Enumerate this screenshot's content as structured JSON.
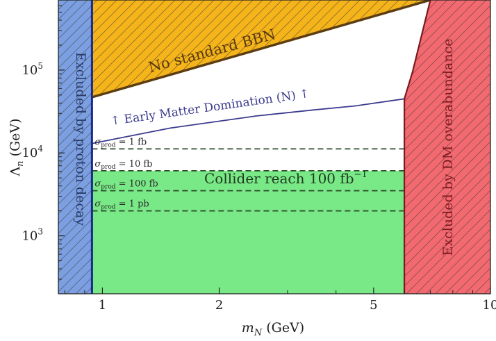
{
  "chart_data": {
    "type": "area",
    "xlabel": "m_N (GeV)",
    "ylabel": "Λ_n (GeV)",
    "x_scale": "log",
    "y_scale": "log",
    "xlim": [
      0.77,
      10
    ],
    "ylim": [
      200,
      700000
    ],
    "x_ticks": [
      {
        "value": 1,
        "label": "1"
      },
      {
        "value": 2,
        "label": "2"
      },
      {
        "value": 5,
        "label": "5"
      },
      {
        "value": 10,
        "label": "10"
      }
    ],
    "y_ticks": [
      {
        "value": 1000,
        "base": "10",
        "exp": "3"
      },
      {
        "value": 10000,
        "base": "10",
        "exp": "4"
      },
      {
        "value": 100000,
        "base": "10",
        "exp": "5"
      }
    ],
    "regions": {
      "proton_decay": {
        "label": "Excluded by proton decay",
        "x_max": 0.94,
        "color": "#7b9fe0"
      },
      "dm_overabundance": {
        "label": "Excluded by DM overabundance",
        "boundary": [
          [
            6.0,
            45000
          ],
          [
            6.3,
            95000
          ],
          [
            7.0,
            700000
          ]
        ],
        "color": "#f26a70"
      },
      "bbn": {
        "label": "No standard BBN",
        "boundary": [
          [
            0.94,
            47000
          ],
          [
            7.0,
            700000
          ]
        ],
        "color": "#f5b41a"
      },
      "collider": {
        "label": "Collider reach 100 fb",
        "label_sup": "−1",
        "x_range": [
          0.94,
          6.0
        ],
        "y_max": 6100,
        "color": "#79e886"
      }
    },
    "series": [
      {
        "name": "↑ Early Matter Domination (N) ↑",
        "type": "line",
        "color": "#3b3b8f",
        "points": [
          [
            0.94,
            13000
          ],
          [
            1.5,
            20000
          ],
          [
            2.5,
            28000
          ],
          [
            3.5,
            33000
          ],
          [
            4.5,
            37000
          ],
          [
            6.0,
            45000
          ]
        ]
      }
    ],
    "cross_section_lines": [
      {
        "label_sym": "σ",
        "label_sub": "prod",
        "label_val": " = 1 fb",
        "y": 11200,
        "x_range": [
          0.94,
          6.0
        ]
      },
      {
        "label_sym": "σ",
        "label_sub": "prod",
        "label_val": " = 10 fb",
        "y": 6100,
        "x_range": [
          0.94,
          6.0
        ]
      },
      {
        "label_sym": "σ",
        "label_sub": "prod",
        "label_val": " = 100 fb",
        "y": 3500,
        "x_range": [
          0.94,
          6.0
        ]
      },
      {
        "label_sym": "σ",
        "label_sub": "prod",
        "label_val": " = 1 pb",
        "y": 2000,
        "x_range": [
          0.94,
          6.0
        ]
      }
    ]
  }
}
